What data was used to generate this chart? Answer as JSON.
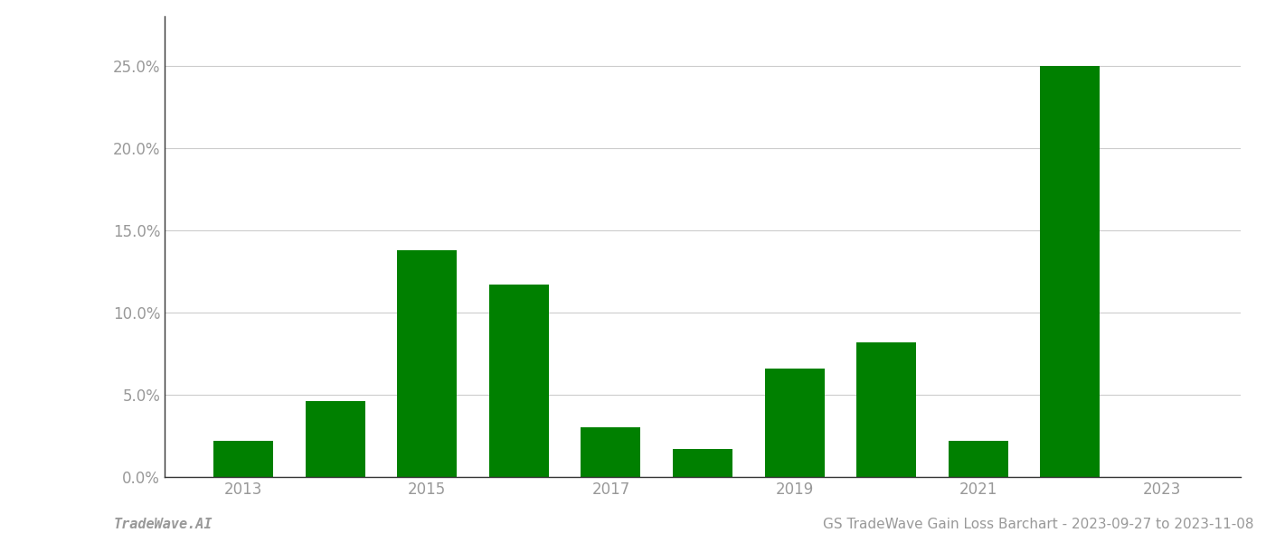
{
  "years": [
    2013,
    2014,
    2015,
    2016,
    2017,
    2018,
    2019,
    2020,
    2021,
    2022,
    2023
  ],
  "values": [
    0.022,
    0.046,
    0.138,
    0.117,
    0.03,
    0.017,
    0.066,
    0.082,
    0.022,
    0.25,
    0.0
  ],
  "bar_color": "#008000",
  "background_color": "#ffffff",
  "grid_color": "#cccccc",
  "axis_color": "#999999",
  "spine_color": "#333333",
  "title_text": "GS TradeWave Gain Loss Barchart - 2023-09-27 to 2023-11-08",
  "watermark_text": "TradeWave.AI",
  "ylim": [
    0,
    0.28
  ],
  "yticks": [
    0.0,
    0.05,
    0.1,
    0.15,
    0.2,
    0.25
  ],
  "title_fontsize": 11,
  "watermark_fontsize": 11,
  "tick_fontsize": 12,
  "bar_width": 0.65
}
